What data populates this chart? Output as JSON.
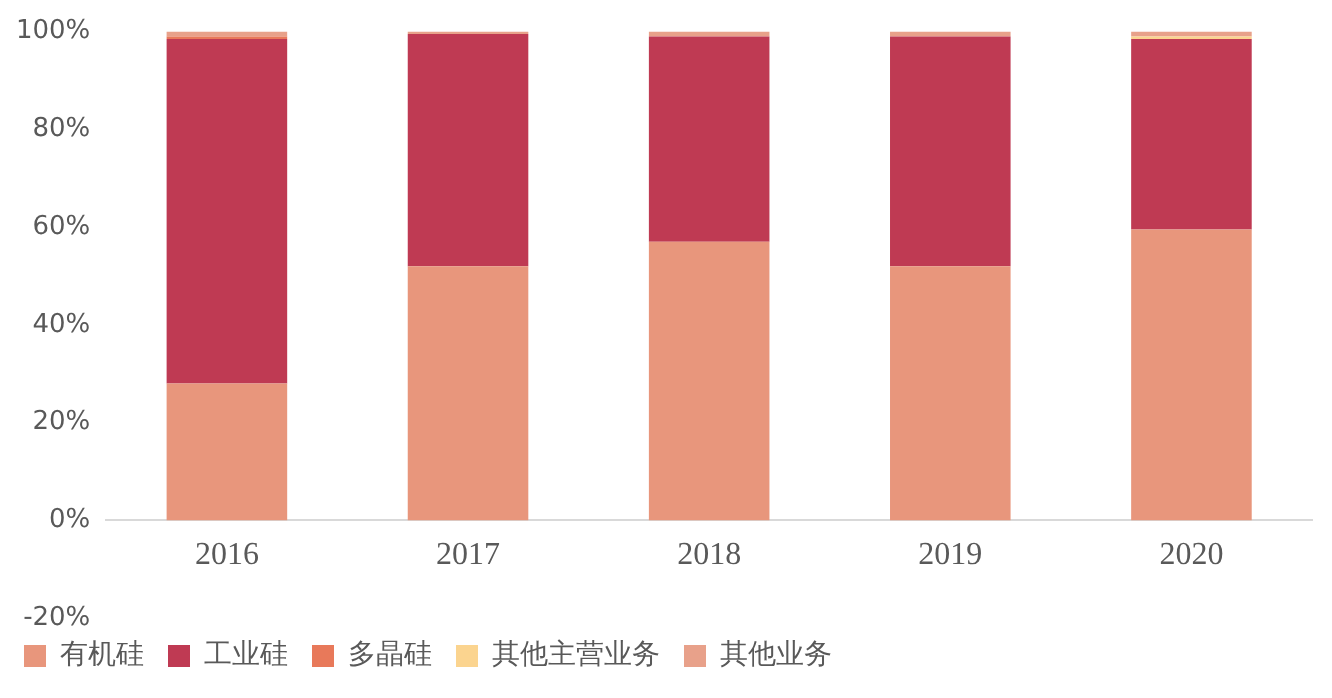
{
  "chart_data": {
    "type": "bar",
    "stacked": true,
    "categories": [
      "2016",
      "2017",
      "2018",
      "2019",
      "2020"
    ],
    "series": [
      {
        "name": "有机硅",
        "color": "#e8967c",
        "values": [
          28,
          52,
          57,
          52,
          59.5
        ]
      },
      {
        "name": "工业硅",
        "color": "#bf3a53",
        "values": [
          70.5,
          47.5,
          42,
          47,
          39
        ]
      },
      {
        "name": "多晶硅",
        "color": "#e8795a",
        "values": [
          0.5,
          0,
          0,
          0,
          0
        ]
      },
      {
        "name": "其他主营业务",
        "color": "#fbd48f",
        "values": [
          0,
          0,
          0,
          0,
          0.5
        ]
      },
      {
        "name": "其他业务",
        "color": "#e8a18a",
        "values": [
          1,
          0.5,
          1,
          1,
          1
        ]
      }
    ],
    "ylim": [
      -20,
      100
    ],
    "yticks": [
      {
        "value": -20,
        "label": "-20%"
      },
      {
        "value": 0,
        "label": "0%"
      },
      {
        "value": 20,
        "label": "20%"
      },
      {
        "value": 40,
        "label": "40%"
      },
      {
        "value": 60,
        "label": "60%"
      },
      {
        "value": 80,
        "label": "80%"
      },
      {
        "value": 100,
        "label": "100%"
      }
    ],
    "grid": false,
    "legend": "bottom"
  }
}
